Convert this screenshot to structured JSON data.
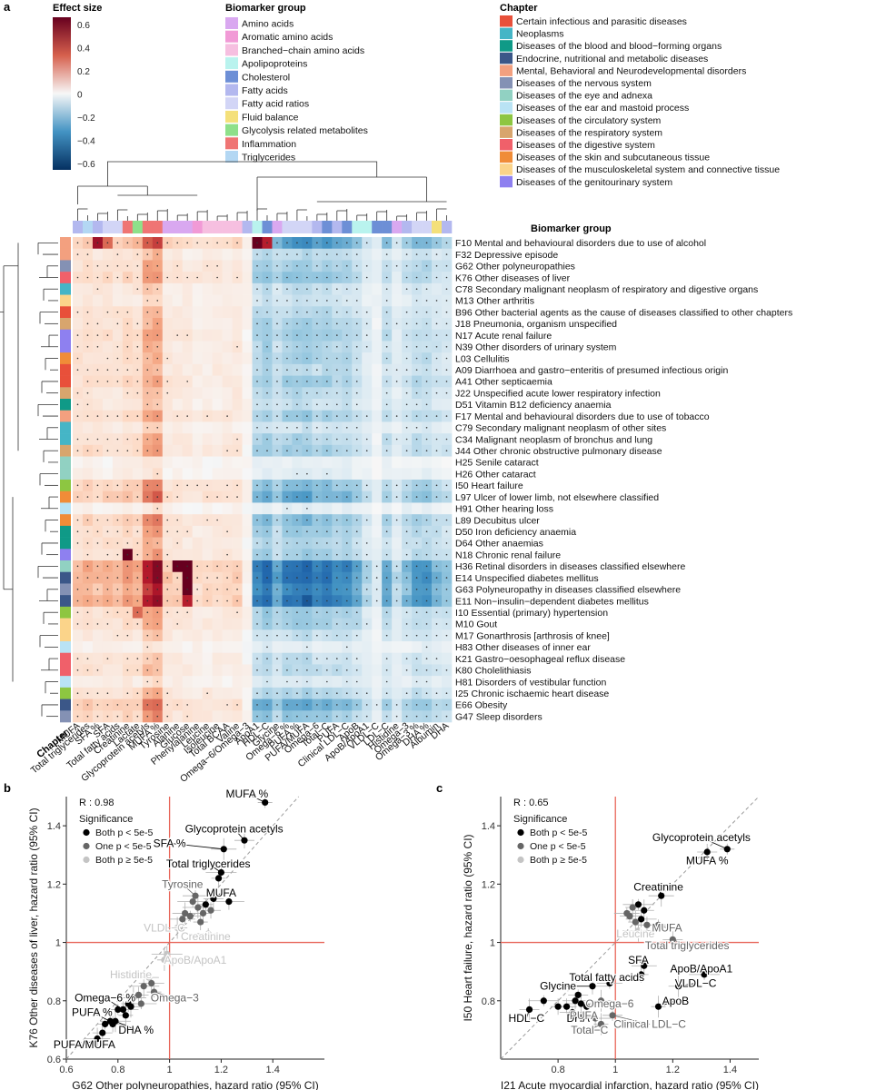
{
  "panel_labels": {
    "a": "a",
    "b": "b",
    "c": "c"
  },
  "colors": {
    "red_line": "#e8665a",
    "diag": "#9a9a9a",
    "both_sig": "#000000",
    "one_sig": "#666666",
    "none_sig": "#c4c4c4",
    "ci": "#b0b0b0"
  },
  "legend_effect": {
    "title": "Effect size",
    "ticks": [
      "0.6",
      "0.4",
      "0.2",
      "0",
      "−0.2",
      "−0.4",
      "−0.6"
    ]
  },
  "legend_biomarker": {
    "title": "Biomarker group",
    "items": [
      {
        "label": "Amino acids",
        "color": "#d9a8f0"
      },
      {
        "label": "Aromatic amino acids",
        "color": "#f19ad6"
      },
      {
        "label": "Branched−chain amino acids",
        "color": "#f6bfe0"
      },
      {
        "label": "Apolipoproteins",
        "color": "#b9f3ee"
      },
      {
        "label": "Cholesterol",
        "color": "#6d8fd6"
      },
      {
        "label": "Fatty acids",
        "color": "#b3b8ef"
      },
      {
        "label": "Fatty acid ratios",
        "color": "#d2d5f6"
      },
      {
        "label": "Fluid balance",
        "color": "#f4e07a"
      },
      {
        "label": "Glycolysis related metabolites",
        "color": "#8ee08a"
      },
      {
        "label": "Inflammation",
        "color": "#ef7574"
      },
      {
        "label": "Triglycerides",
        "color": "#b3d7f3"
      }
    ]
  },
  "legend_chapter": {
    "title": "Chapter",
    "items": [
      {
        "label": "Certain infectious and parasitic diseases",
        "color": "#e8503a"
      },
      {
        "label": "Neoplasms",
        "color": "#45b5c6"
      },
      {
        "label": "Diseases of the blood and blood−forming organs",
        "color": "#0f9a87"
      },
      {
        "label": "Endocrine, nutritional and metabolic diseases",
        "color": "#3b5788"
      },
      {
        "label": "Mental, Behavioral and Neurodevelopmental disorders",
        "color": "#f3a07f"
      },
      {
        "label": "Diseases of the nervous system",
        "color": "#8491b4"
      },
      {
        "label": "Diseases of the eye and adnexa",
        "color": "#91d1c2"
      },
      {
        "label": "Diseases of the ear and mastoid process",
        "color": "#b9e3f4"
      },
      {
        "label": "Diseases of the circulatory system",
        "color": "#8dc641"
      },
      {
        "label": "Diseases of the respiratory system",
        "color": "#d8a56d"
      },
      {
        "label": "Diseases of the digestive system",
        "color": "#f0606a"
      },
      {
        "label": "Diseases of the skin and subcutaneous tissue",
        "color": "#f08c38"
      },
      {
        "label": "Diseases of the musculoskeletal system and connective tissue",
        "color": "#fbd48a"
      },
      {
        "label": "Diseases of the genitourinary system",
        "color": "#8e80f0"
      }
    ]
  },
  "heatmap": {
    "biomarker_group_label": "Biomarker group",
    "chapter_label": "Chapter",
    "columns": [
      "MUFA",
      "Total triglycerides",
      "SFA %",
      "SFA",
      "Total fatty acids",
      "Creatinine",
      "Lactate",
      "Glycoprotein acetyls",
      "MUFA %",
      "Tyrosine",
      "Alanine",
      "Glucose",
      "Phenylalanine",
      "Leucine",
      "Isoleucine",
      "Total BCAA",
      "Valine",
      "Omega−6/Omega−3",
      "ApoA1",
      "HDL−C",
      "Glycine",
      "Omega−6 %",
      "PUFA %",
      "PUFA/MUFA",
      "Omega−6",
      "Total−C",
      "PUFA",
      "Clinical LDL−C",
      "ApoB",
      "ApoB/ApoA1",
      "VLDL−C",
      "LDL−C",
      "Histidine",
      "Omega−3",
      "Omega−3 %",
      "DHA %",
      "Albumin",
      "DHA"
    ],
    "column_groups": [
      5,
      10,
      5,
      6,
      6,
      9,
      8,
      9,
      9,
      0,
      0,
      0,
      1,
      2,
      2,
      2,
      2,
      5,
      3,
      4,
      0,
      6,
      6,
      6,
      5,
      4,
      5,
      4,
      3,
      3,
      4,
      4,
      0,
      5,
      6,
      6,
      7,
      5
    ],
    "rows": [
      {
        "label": "F10 Mental and behavioural disorders due to use of alcohol",
        "chapter": 4
      },
      {
        "label": "F32 Depressive episode",
        "chapter": 4
      },
      {
        "label": "G62 Other polyneuropathies",
        "chapter": 5
      },
      {
        "label": "K76 Other diseases of liver",
        "chapter": 10
      },
      {
        "label": "C78 Secondary malignant neoplasm of respiratory and digestive organs",
        "chapter": 1
      },
      {
        "label": "M13 Other arthritis",
        "chapter": 12
      },
      {
        "label": "B96 Other bacterial agents as the cause of diseases classified to other chapters",
        "chapter": 0
      },
      {
        "label": "J18 Pneumonia, organism unspecified",
        "chapter": 9
      },
      {
        "label": "N17 Acute renal failure",
        "chapter": 13
      },
      {
        "label": "N39 Other disorders of urinary system",
        "chapter": 13
      },
      {
        "label": "L03 Cellulitis",
        "chapter": 11
      },
      {
        "label": "A09 Diarrhoea and gastro−enteritis of presumed infectious origin",
        "chapter": 0
      },
      {
        "label": "A41 Other septicaemia",
        "chapter": 0
      },
      {
        "label": "J22 Unspecified acute lower respiratory infection",
        "chapter": 9
      },
      {
        "label": "D51 Vitamin B12 deficiency anaemia",
        "chapter": 2
      },
      {
        "label": "F17 Mental and behavioural disorders due to use of tobacco",
        "chapter": 4
      },
      {
        "label": "C79 Secondary malignant neoplasm of other sites",
        "chapter": 1
      },
      {
        "label": "C34 Malignant neoplasm of bronchus and lung",
        "chapter": 1
      },
      {
        "label": "J44 Other chronic obstructive pulmonary disease",
        "chapter": 9
      },
      {
        "label": "H25 Senile cataract",
        "chapter": 6
      },
      {
        "label": "H26 Other cataract",
        "chapter": 6
      },
      {
        "label": "I50 Heart failure",
        "chapter": 8
      },
      {
        "label": "L97 Ulcer of lower limb, not elsewhere classified",
        "chapter": 11
      },
      {
        "label": "H91 Other hearing loss",
        "chapter": 7
      },
      {
        "label": "L89 Decubitus ulcer",
        "chapter": 11
      },
      {
        "label": "D50 Iron deficiency anaemia",
        "chapter": 2
      },
      {
        "label": "D64 Other anaemias",
        "chapter": 2
      },
      {
        "label": "N18 Chronic renal failure",
        "chapter": 13
      },
      {
        "label": "H36 Retinal disorders in diseases classified elsewhere",
        "chapter": 6
      },
      {
        "label": "E14 Unspecified diabetes mellitus",
        "chapter": 3
      },
      {
        "label": "G63 Polyneuropathy in diseases classified elsewhere",
        "chapter": 5
      },
      {
        "label": "E11 Non−insulin−dependent diabetes mellitus",
        "chapter": 3
      },
      {
        "label": "I10 Essential (primary) hypertension",
        "chapter": 8
      },
      {
        "label": "M10 Gout",
        "chapter": 12
      },
      {
        "label": "M17 Gonarthrosis [arthrosis of knee]",
        "chapter": 12
      },
      {
        "label": "H83 Other diseases of inner ear",
        "chapter": 7
      },
      {
        "label": "K21 Gastro−oesophageal reflux disease",
        "chapter": 10
      },
      {
        "label": "K80 Cholelithiasis",
        "chapter": 10
      },
      {
        "label": "H81 Disorders of vestibular function",
        "chapter": 7
      },
      {
        "label": "I25 Chronic ischaemic heart disease",
        "chapter": 8
      },
      {
        "label": "E66 Obesity",
        "chapter": 3
      },
      {
        "label": "G47 Sleep disorders",
        "chapter": 5
      }
    ]
  },
  "chart_data": [
    {
      "type": "heatmap",
      "panel": "a",
      "value_range": [
        -0.7,
        0.7
      ],
      "column_profile": [
        0.12,
        0.14,
        0.12,
        0.13,
        0.12,
        0.15,
        0.14,
        0.3,
        0.33,
        0.1,
        0.09,
        0.08,
        0.07,
        0.08,
        0.08,
        0.08,
        0.09,
        0.02,
        -0.25,
        -0.3,
        -0.2,
        -0.27,
        -0.28,
        -0.3,
        -0.25,
        -0.27,
        -0.24,
        -0.25,
        -0.2,
        -0.12,
        -0.05,
        -0.2,
        -0.1,
        -0.17,
        -0.22,
        -0.22,
        -0.17,
        -0.15
      ],
      "row_strength": [
        1.5,
        0.7,
        0.9,
        1.0,
        0.6,
        0.5,
        0.7,
        0.8,
        0.9,
        0.8,
        0.8,
        0.7,
        0.9,
        0.7,
        0.6,
        0.9,
        0.5,
        0.8,
        0.9,
        0.2,
        0.3,
        1.1,
        1.3,
        0.3,
        1.1,
        0.9,
        0.8,
        0.9,
        1.9,
        1.9,
        1.7,
        1.9,
        0.9,
        0.9,
        0.6,
        0.3,
        0.6,
        0.7,
        0.4,
        0.8,
        1.3,
        1.0
      ],
      "overrides": [
        [
          0,
          2,
          0.6
        ],
        [
          0,
          3,
          0.4
        ],
        [
          0,
          18,
          0.7
        ],
        [
          0,
          19,
          0.55
        ],
        [
          27,
          5,
          0.75
        ],
        [
          28,
          10,
          0.7
        ],
        [
          28,
          11,
          0.75
        ],
        [
          29,
          11,
          0.7
        ],
        [
          30,
          11,
          0.7
        ],
        [
          31,
          11,
          0.55
        ],
        [
          32,
          6,
          0.4
        ]
      ]
    },
    {
      "type": "scatter",
      "panel": "b",
      "xlabel": "G62 Other polyneuropathies, hazard ratio (95% CI)",
      "ylabel": "K76 Other diseases of liver, hazard ratio (95% CI)",
      "xlim": [
        0.6,
        1.6
      ],
      "ylim": [
        0.6,
        1.5
      ],
      "x_ticks": [
        0.6,
        0.8,
        1.0,
        1.2,
        1.4
      ],
      "y_ticks": [
        0.6,
        0.8,
        1.0,
        1.2,
        1.4
      ],
      "annotation": "R : 0.98",
      "legend_title": "Significance",
      "legend_items": [
        "Both p < 5e-5",
        "One p < 5e-5",
        "Both p ≥ 5e-5"
      ],
      "points": [
        {
          "x": 1.37,
          "y": 1.48,
          "s": 0,
          "label": "MUFA %",
          "lx": 1.3,
          "ly": 1.51
        },
        {
          "x": 1.29,
          "y": 1.35,
          "s": 0,
          "label": "Glycoprotein acetyls",
          "lx": 1.25,
          "ly": 1.39
        },
        {
          "x": 1.21,
          "y": 1.32,
          "s": 0,
          "label": "SFA %",
          "lx": 1.0,
          "ly": 1.34
        },
        {
          "x": 1.2,
          "y": 1.24,
          "s": 0,
          "label": "Total triglycerides",
          "lx": 1.15,
          "ly": 1.27
        },
        {
          "x": 1.19,
          "y": 1.22,
          "s": 0
        },
        {
          "x": 1.17,
          "y": 1.15,
          "s": 0,
          "label": "MUFA",
          "lx": 1.2,
          "ly": 1.17
        },
        {
          "x": 1.1,
          "y": 1.16,
          "s": 1,
          "label": "Tyrosine",
          "lx": 1.05,
          "ly": 1.2
        },
        {
          "x": 1.23,
          "y": 1.14,
          "s": 0
        },
        {
          "x": 1.13,
          "y": 1.1,
          "s": 1
        },
        {
          "x": 1.08,
          "y": 1.09,
          "s": 1
        },
        {
          "x": 1.05,
          "y": 1.08,
          "s": 1
        },
        {
          "x": 1.11,
          "y": 1.12,
          "s": 1
        },
        {
          "x": 1.14,
          "y": 1.13,
          "s": 0
        },
        {
          "x": 1.16,
          "y": 1.11,
          "s": 1
        },
        {
          "x": 1.06,
          "y": 1.1,
          "s": 1
        },
        {
          "x": 1.09,
          "y": 1.14,
          "s": 1
        },
        {
          "x": 1.12,
          "y": 1.07,
          "s": 1
        },
        {
          "x": 1.03,
          "y": 1.05,
          "s": 2,
          "label": "VLDL−C",
          "lx": 0.98,
          "ly": 1.05
        },
        {
          "x": 1.15,
          "y": 1.03,
          "s": 2,
          "label": "Creatinine",
          "lx": 1.14,
          "ly": 1.02
        },
        {
          "x": 0.99,
          "y": 0.96,
          "s": 2
        },
        {
          "x": 0.98,
          "y": 0.94,
          "s": 2,
          "label": "ApoB/ApoA1",
          "lx": 1.1,
          "ly": 0.94
        },
        {
          "x": 0.92,
          "y": 0.88,
          "s": 2,
          "label": "Histidine",
          "lx": 0.85,
          "ly": 0.89
        },
        {
          "x": 0.93,
          "y": 0.86,
          "s": 1
        },
        {
          "x": 0.9,
          "y": 0.85,
          "s": 1
        },
        {
          "x": 0.94,
          "y": 0.83,
          "s": 1,
          "label": "Omega−3",
          "lx": 1.02,
          "ly": 0.81
        },
        {
          "x": 0.88,
          "y": 0.82,
          "s": 1
        },
        {
          "x": 0.86,
          "y": 0.81,
          "s": 1
        },
        {
          "x": 0.89,
          "y": 0.79,
          "s": 1
        },
        {
          "x": 0.84,
          "y": 0.79,
          "s": 0
        },
        {
          "x": 0.85,
          "y": 0.78,
          "s": 0
        },
        {
          "x": 0.8,
          "y": 0.77,
          "s": 0
        },
        {
          "x": 0.82,
          "y": 0.77,
          "s": 0,
          "label": "Omega−6 %",
          "lx": 0.75,
          "ly": 0.81
        },
        {
          "x": 0.83,
          "y": 0.75,
          "s": 0
        },
        {
          "x": 0.77,
          "y": 0.73,
          "s": 0,
          "label": "PUFA %",
          "lx": 0.7,
          "ly": 0.76
        },
        {
          "x": 0.78,
          "y": 0.72,
          "s": 0
        },
        {
          "x": 0.79,
          "y": 0.73,
          "s": 0,
          "label": "DHA %",
          "lx": 0.87,
          "ly": 0.7
        },
        {
          "x": 0.75,
          "y": 0.72,
          "s": 0
        },
        {
          "x": 0.74,
          "y": 0.69,
          "s": 0
        },
        {
          "x": 0.72,
          "y": 0.67,
          "s": 0,
          "label": "PUFA/MUFA",
          "lx": 0.67,
          "ly": 0.65
        }
      ]
    },
    {
      "type": "scatter",
      "panel": "c",
      "xlabel": "I21 Acute myocardial infarction, hazard ratio (95% CI)",
      "ylabel": "I50 Heart failure, hazard ratio (95% CI)",
      "xlim": [
        0.6,
        1.5
      ],
      "ylim": [
        0.6,
        1.5
      ],
      "x_ticks": [
        0.8,
        1.0,
        1.2,
        1.4
      ],
      "y_ticks": [
        0.8,
        1.0,
        1.2,
        1.4
      ],
      "annotation": "R : 0.65",
      "legend_title": "Significance",
      "legend_items": [
        "Both p < 5e-5",
        "One p < 5e-5",
        "Both p ≥ 5e-5"
      ],
      "points": [
        {
          "x": 1.39,
          "y": 1.32,
          "s": 0,
          "label": "Glycoprotein acetyls",
          "lx": 1.3,
          "ly": 1.36
        },
        {
          "x": 1.32,
          "y": 1.31,
          "s": 0,
          "label": "MUFA %",
          "lx": 1.32,
          "ly": 1.28
        },
        {
          "x": 1.16,
          "y": 1.16,
          "s": 0,
          "label": "Creatinine",
          "lx": 1.15,
          "ly": 1.19
        },
        {
          "x": 1.08,
          "y": 1.13,
          "s": 0
        },
        {
          "x": 1.06,
          "y": 1.12,
          "s": 1
        },
        {
          "x": 1.1,
          "y": 1.11,
          "s": 0
        },
        {
          "x": 1.04,
          "y": 1.1,
          "s": 1
        },
        {
          "x": 1.09,
          "y": 1.08,
          "s": 0
        },
        {
          "x": 1.07,
          "y": 1.07,
          "s": 1
        },
        {
          "x": 1.05,
          "y": 1.09,
          "s": 1
        },
        {
          "x": 1.11,
          "y": 1.06,
          "s": 1
        },
        {
          "x": 1.08,
          "y": 1.04,
          "s": 2,
          "label": "Leucine",
          "lx": 1.07,
          "ly": 1.03
        },
        {
          "x": 1.15,
          "y": 1.06,
          "s": 1,
          "label": "MUFA",
          "lx": 1.18,
          "ly": 1.05
        },
        {
          "x": 1.2,
          "y": 1.01,
          "s": 1,
          "label": "Total triglycerides",
          "lx": 1.25,
          "ly": 0.99
        },
        {
          "x": 1.1,
          "y": 0.92,
          "s": 0,
          "label": "SFA",
          "lx": 1.08,
          "ly": 0.94
        },
        {
          "x": 1.31,
          "y": 0.89,
          "s": 0,
          "label": "ApoB/ApoA1",
          "lx": 1.3,
          "ly": 0.91
        },
        {
          "x": 1.09,
          "y": 0.89,
          "s": 0
        },
        {
          "x": 1.22,
          "y": 0.85,
          "s": 0,
          "label": "VLDL−C",
          "lx": 1.28,
          "ly": 0.86
        },
        {
          "x": 0.98,
          "y": 0.86,
          "s": 0,
          "label": "Total fatty acids",
          "lx": 0.97,
          "ly": 0.88
        },
        {
          "x": 0.92,
          "y": 0.85,
          "s": 0,
          "label": "Glycine",
          "lx": 0.8,
          "ly": 0.85
        },
        {
          "x": 1.15,
          "y": 0.78,
          "s": 0,
          "label": "ApoB",
          "lx": 1.21,
          "ly": 0.8
        },
        {
          "x": 0.87,
          "y": 0.82,
          "s": 0
        },
        {
          "x": 0.86,
          "y": 0.8,
          "s": 0
        },
        {
          "x": 0.88,
          "y": 0.79,
          "s": 0
        },
        {
          "x": 0.9,
          "y": 0.78,
          "s": 0
        },
        {
          "x": 0.83,
          "y": 0.78,
          "s": 0
        },
        {
          "x": 0.95,
          "y": 0.8,
          "s": 1,
          "label": "Omega−6",
          "lx": 0.98,
          "ly": 0.79
        },
        {
          "x": 0.75,
          "y": 0.8,
          "s": 0
        },
        {
          "x": 0.8,
          "y": 0.78,
          "s": 0
        },
        {
          "x": 0.7,
          "y": 0.77,
          "s": 0,
          "label": "HDL−C",
          "lx": 0.69,
          "ly": 0.74
        },
        {
          "x": 0.85,
          "y": 0.76,
          "s": 0,
          "label": "DHA",
          "lx": 0.87,
          "ly": 0.74
        },
        {
          "x": 0.93,
          "y": 0.74,
          "s": 1,
          "label": "PUFA",
          "lx": 0.89,
          "ly": 0.75
        },
        {
          "x": 0.95,
          "y": 0.72,
          "s": 1,
          "label": "Total−C",
          "lx": 0.91,
          "ly": 0.7
        },
        {
          "x": 0.99,
          "y": 0.75,
          "s": 1,
          "label": "Clinical LDL−C",
          "lx": 1.12,
          "ly": 0.72
        }
      ]
    }
  ]
}
